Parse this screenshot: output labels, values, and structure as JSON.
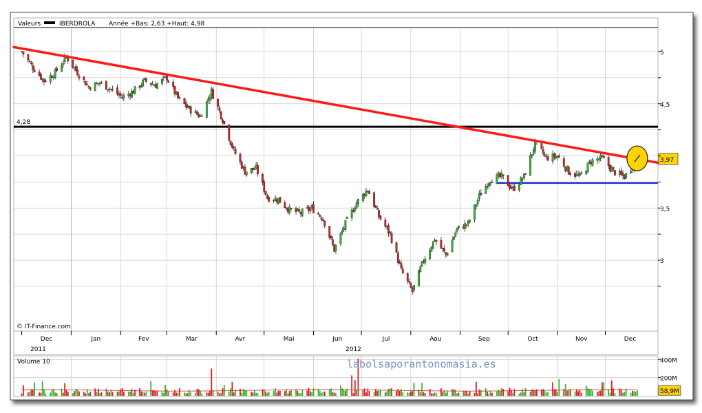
{
  "chart_data": [
    {
      "type": "candlestick",
      "header": {
        "label": "Valeurs",
        "series_name": "IBERDROLA",
        "stats": "Année +Bas: 2,63 +Haut: 4,98"
      },
      "copyright": "© IT-Finance.com",
      "ylim": [
        2.6,
        5.2
      ],
      "y_ticks": [
        {
          "value": 3,
          "label": "3"
        },
        {
          "value": 3.5,
          "label": "3,5"
        },
        {
          "value": 4.5,
          "label": "4,5"
        },
        {
          "value": 5,
          "label": "5"
        }
      ],
      "x_months": [
        "Dec",
        "Jan",
        "Fev",
        "Mar",
        "Avr",
        "Mai",
        "Jun",
        "Jul",
        "Aou",
        "Sep",
        "Oct",
        "Nov",
        "Dec"
      ],
      "x_years": [
        "2011",
        "2012"
      ],
      "last_price_label": "3,97",
      "last_price": 3.97,
      "horizontal_levels": [
        {
          "label": "4,28",
          "value": 4.28,
          "color": "#000000"
        },
        {
          "label": "",
          "value": 3.74,
          "color": "#1a3ad6"
        }
      ],
      "trendline": {
        "from": [
          "2011-12-01",
          5.03
        ],
        "to": [
          "2012-12-21",
          3.97
        ],
        "color": "#ff1a1a"
      },
      "price_path": [
        [
          "2011-12-01",
          5.0
        ],
        [
          "2011-12-08",
          4.85
        ],
        [
          "2011-12-15",
          4.72
        ],
        [
          "2011-12-22",
          4.8
        ],
        [
          "2011-12-29",
          4.95
        ],
        [
          "2012-01-05",
          4.8
        ],
        [
          "2012-01-12",
          4.66
        ],
        [
          "2012-01-19",
          4.7
        ],
        [
          "2012-01-26",
          4.64
        ],
        [
          "2012-02-02",
          4.56
        ],
        [
          "2012-02-09",
          4.62
        ],
        [
          "2012-02-16",
          4.72
        ],
        [
          "2012-02-23",
          4.68
        ],
        [
          "2012-03-01",
          4.75
        ],
        [
          "2012-03-08",
          4.55
        ],
        [
          "2012-03-15",
          4.45
        ],
        [
          "2012-03-22",
          4.38
        ],
        [
          "2012-03-29",
          4.62
        ],
        [
          "2012-04-05",
          4.35
        ],
        [
          "2012-04-12",
          4.05
        ],
        [
          "2012-04-19",
          3.85
        ],
        [
          "2012-04-26",
          3.88
        ],
        [
          "2012-05-03",
          3.6
        ],
        [
          "2012-05-10",
          3.58
        ],
        [
          "2012-05-17",
          3.48
        ],
        [
          "2012-05-24",
          3.45
        ],
        [
          "2012-05-31",
          3.5
        ],
        [
          "2012-06-07",
          3.4
        ],
        [
          "2012-06-14",
          3.1
        ],
        [
          "2012-06-21",
          3.35
        ],
        [
          "2012-06-28",
          3.55
        ],
        [
          "2012-07-05",
          3.68
        ],
        [
          "2012-07-12",
          3.42
        ],
        [
          "2012-07-19",
          3.25
        ],
        [
          "2012-07-26",
          2.9
        ],
        [
          "2012-08-02",
          2.7
        ],
        [
          "2012-08-09",
          3.0
        ],
        [
          "2012-08-16",
          3.2
        ],
        [
          "2012-08-23",
          3.05
        ],
        [
          "2012-08-30",
          3.3
        ],
        [
          "2012-09-06",
          3.35
        ],
        [
          "2012-09-13",
          3.62
        ],
        [
          "2012-09-20",
          3.78
        ],
        [
          "2012-09-27",
          3.8
        ],
        [
          "2012-10-04",
          3.68
        ],
        [
          "2012-10-11",
          3.8
        ],
        [
          "2012-10-18",
          4.12
        ],
        [
          "2012-10-25",
          3.98
        ],
        [
          "2012-11-01",
          4.0
        ],
        [
          "2012-11-08",
          3.85
        ],
        [
          "2012-11-15",
          3.8
        ],
        [
          "2012-11-22",
          3.95
        ],
        [
          "2012-11-29",
          3.98
        ],
        [
          "2012-12-06",
          3.85
        ],
        [
          "2012-12-13",
          3.8
        ],
        [
          "2012-12-21",
          3.97
        ]
      ]
    },
    {
      "type": "bar",
      "title": "Volume 10",
      "y_ticks": [
        {
          "value": 200,
          "label": "200M"
        },
        {
          "value": 400,
          "label": "400M"
        }
      ],
      "ylim": [
        0,
        440
      ],
      "last_value_label": "58,9M",
      "last_value": 58.9,
      "spikes": [
        {
          "date": "2012-03-29",
          "value": 300
        },
        {
          "date": "2012-06-29",
          "value": 410
        },
        {
          "date": "2012-06-25",
          "value": 225
        }
      ]
    }
  ],
  "watermark": "labolsaporantonomasia.es",
  "colors": {
    "up": "#2db82d",
    "down": "#d62020",
    "grid": "#c8c8c8",
    "marker": "#ffd400"
  }
}
